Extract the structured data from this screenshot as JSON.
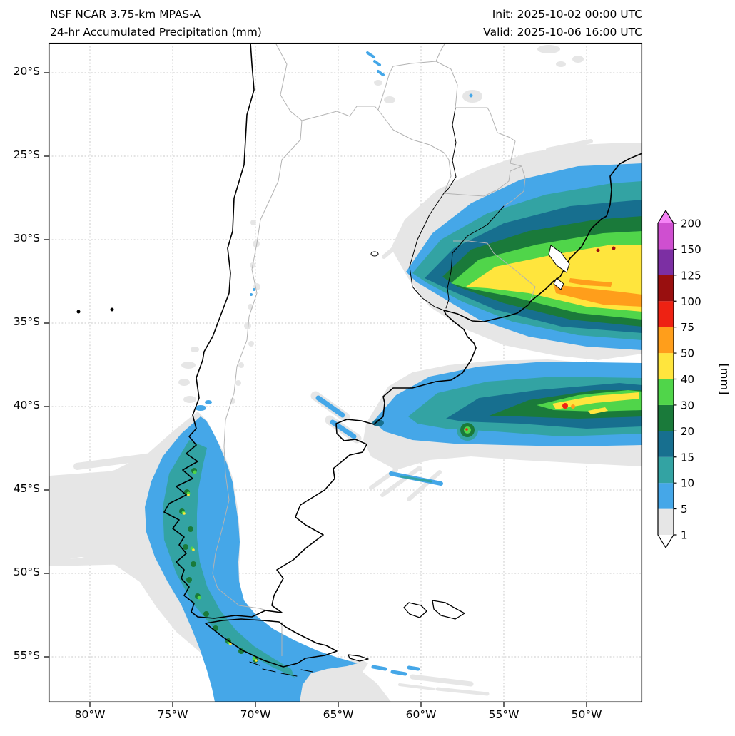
{
  "header": {
    "title_line1": "NSF NCAR 3.75-km MPAS-A",
    "title_line2": "24-hr Accumulated Precipitation (mm)",
    "init_label": "Init: 2025-10-02 00:00 UTC",
    "valid_label": "Valid: 2025-10-06 16:00 UTC"
  },
  "map": {
    "lat_ticks": [
      "20°S",
      "25°S",
      "30°S",
      "35°S",
      "40°S",
      "45°S",
      "50°S",
      "55°S"
    ],
    "lon_ticks": [
      "80°W",
      "75°W",
      "70°W",
      "65°W",
      "60°W",
      "55°W",
      "50°W"
    ]
  },
  "colorbar": {
    "unit_label": "[mm]",
    "levels": [
      "1",
      "5",
      "10",
      "15",
      "20",
      "30",
      "40",
      "50",
      "75",
      "100",
      "125",
      "150",
      "200"
    ],
    "palette": {
      "1": "#e6e6e6",
      "5": "#45a7e8",
      "10": "#33a3a3",
      "15": "#176f8f",
      "20": "#1a7a3a",
      "30": "#50d54a",
      "40": "#ffe53d",
      "50": "#ff9e1b",
      "75": "#ee2213",
      "100": "#990f0f",
      "125": "#7c2fa3",
      "150": "#cf4fd0",
      "over": "#f583f5",
      "under": "#ffffff"
    }
  }
}
